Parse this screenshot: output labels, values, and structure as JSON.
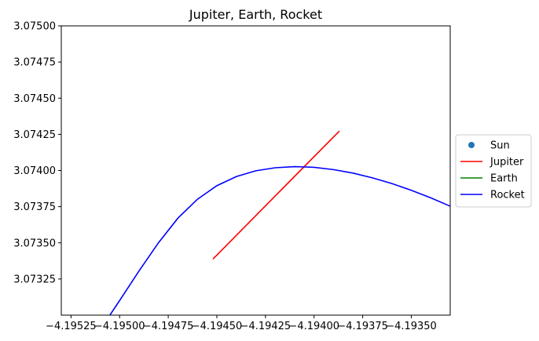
{
  "chart_data": {
    "type": "line",
    "title": "Jupiter, Earth, Rocket",
    "xlabel": "",
    "ylabel": "",
    "xlim": [
      -4.1953,
      -4.1933
    ],
    "ylim": [
      3.073,
      3.075
    ],
    "x_ticks": [
      -4.19525,
      -4.195,
      -4.19475,
      -4.1945,
      -4.19425,
      -4.194,
      -4.19375,
      -4.1935
    ],
    "x_tick_labels": [
      "−4.19525",
      "−4.19500",
      "−4.19475",
      "−4.19450",
      "−4.19425",
      "−4.19400",
      "−4.19375",
      "−4.19350"
    ],
    "y_ticks": [
      3.07325,
      3.0735,
      3.07375,
      3.074,
      3.07425,
      3.0745,
      3.07475,
      3.075
    ],
    "y_tick_labels": [
      "3.07325",
      "3.07350",
      "3.07375",
      "3.07400",
      "3.07425",
      "3.07450",
      "3.07475",
      "3.07500"
    ],
    "grid": false,
    "legend_placement": "center-right-outside",
    "series": [
      {
        "name": "Sun",
        "kind": "marker",
        "color": "#1f77b4",
        "points": []
      },
      {
        "name": "Jupiter",
        "kind": "line",
        "color": "#ff0000",
        "points": [
          [
            -4.19452,
            3.073388
          ],
          [
            -4.19387,
            3.074273
          ]
        ]
      },
      {
        "name": "Earth",
        "kind": "line",
        "color": "#008000",
        "points": []
      },
      {
        "name": "Rocket",
        "kind": "line",
        "color": "#0000ff",
        "points": [
          [
            -4.19505,
            3.073
          ],
          [
            -4.195,
            3.073101
          ],
          [
            -4.1949,
            3.073306
          ],
          [
            -4.1948,
            3.073501
          ],
          [
            -4.1947,
            3.073671
          ],
          [
            -4.1946,
            3.073801
          ],
          [
            -4.1945,
            3.073895
          ],
          [
            -4.1944,
            3.073958
          ],
          [
            -4.1943,
            3.073998
          ],
          [
            -4.1942,
            3.074019
          ],
          [
            -4.1941,
            3.074027
          ],
          [
            -4.194,
            3.074022
          ],
          [
            -4.1939,
            3.074006
          ],
          [
            -4.1938,
            3.073982
          ],
          [
            -4.1937,
            3.073949
          ],
          [
            -4.1936,
            3.07391
          ],
          [
            -4.1935,
            3.073863
          ],
          [
            -4.1934,
            3.073811
          ],
          [
            -4.1933,
            3.073753
          ]
        ]
      }
    ]
  }
}
